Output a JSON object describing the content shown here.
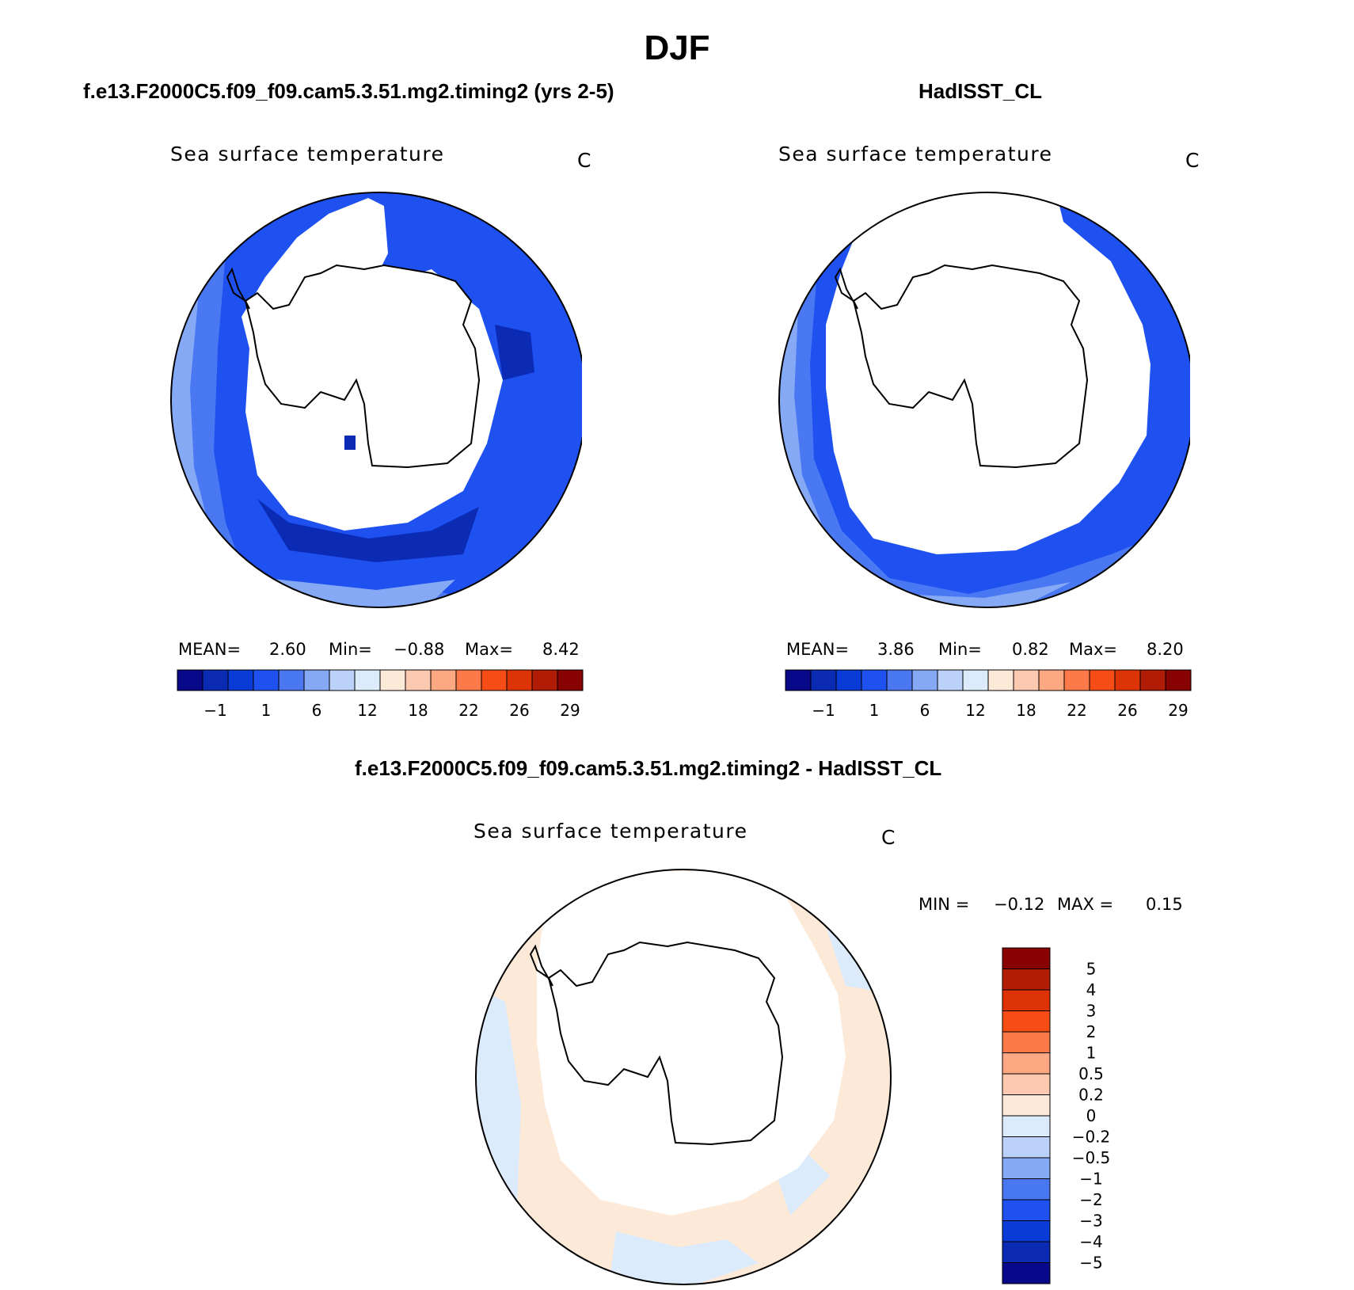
{
  "title": "DJF",
  "colors": {
    "sst_levels": [
      "#08088a",
      "#0c2bb5",
      "#0a3bd6",
      "#1f51f0",
      "#4a78f2",
      "#86a9f6",
      "#bcd1fa",
      "#dcebfb",
      "#fde9d8",
      "#fcc8b0",
      "#fca882",
      "#fb7a48",
      "#f84c17",
      "#de3306",
      "#b01d04",
      "#8a0303"
    ],
    "diff_levels": [
      "#08088a",
      "#0c2bb5",
      "#0a3bd6",
      "#1f51f0",
      "#4a78f2",
      "#86a9f6",
      "#bcd1fa",
      "#dcebfb",
      "#fde9d8",
      "#fcc8b0",
      "#fca882",
      "#fb7a48",
      "#f84c17",
      "#de3306",
      "#b01d04",
      "#8a0303"
    ],
    "land": "#ffffff",
    "coast": "#000000"
  },
  "panel_model": {
    "title": "f.e13.F2000C5.f09_f09.cam5.3.51.mg2.timing2 (yrs 2-5)",
    "variable": "Sea surface temperature",
    "units": "C",
    "mean_label": "MEAN=",
    "mean": "2.60",
    "min_label": "Min=",
    "min": "−0.88",
    "max_label": "Max=",
    "max": "8.42",
    "ticks": [
      "−1",
      "1",
      "6",
      "12",
      "18",
      "22",
      "26",
      "29"
    ]
  },
  "panel_obs": {
    "title": "HadISST_CL",
    "variable": "Sea surface temperature",
    "units": "C",
    "mean_label": "MEAN=",
    "mean": "3.86",
    "min_label": "Min=",
    "min": "0.82",
    "max_label": "Max=",
    "max": "8.20",
    "ticks": [
      "−1",
      "1",
      "6",
      "12",
      "18",
      "22",
      "26",
      "29"
    ]
  },
  "panel_diff": {
    "title": "f.e13.F2000C5.f09_f09.cam5.3.51.mg2.timing2 - HadISST_CL",
    "variable": "Sea surface temperature",
    "units": "C",
    "min_label": "MIN =",
    "min": "−0.12",
    "max_label": "MAX =",
    "max": "0.15",
    "ticks": [
      "5",
      "4",
      "3",
      "2",
      "1",
      "0.5",
      "0.2",
      "0",
      "−0.2",
      "−0.5",
      "−1",
      "−2",
      "−3",
      "−4",
      "−5"
    ]
  }
}
